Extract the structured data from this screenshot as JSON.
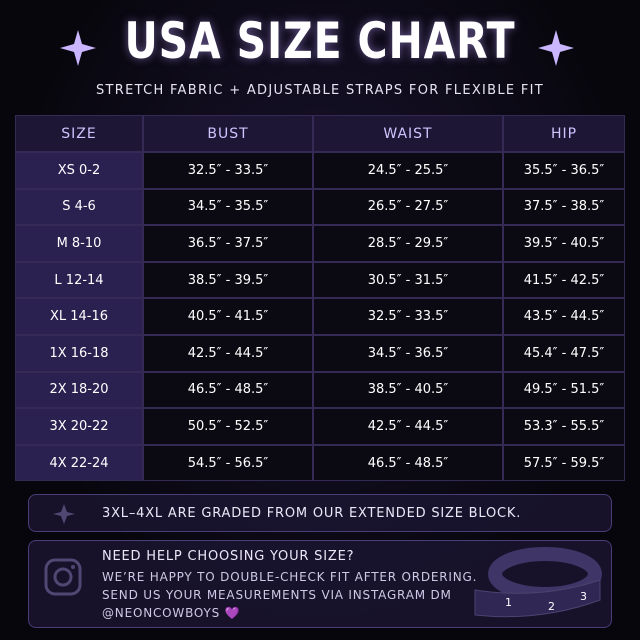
{
  "header": {
    "title": "USA SIZE CHART",
    "subtitle": "STRETCH FABRIC + ADJUSTABLE STRAPS FOR FLEXIBLE FIT"
  },
  "table": {
    "columns": [
      "SIZE",
      "BUST",
      "WAIST",
      "HIP"
    ],
    "rows": [
      [
        "XS 0-2",
        "32.5″ - 33.5″",
        "24.5″ - 25.5″",
        "35.5″ - 36.5″"
      ],
      [
        "S 4-6",
        "34.5″ - 35.5″",
        "26.5″ - 27.5″",
        "37.5″ - 38.5″"
      ],
      [
        "M 8-10",
        "36.5″ - 37.5″",
        "28.5″ - 29.5″",
        "39.5″ - 40.5″"
      ],
      [
        "L 12-14",
        "38.5″ - 39.5″",
        "30.5″ - 31.5″",
        "41.5″ - 42.5″"
      ],
      [
        "XL 14-16",
        "40.5″ - 41.5″",
        "32.5″ - 33.5″",
        "43.5″ - 44.5″"
      ],
      [
        "1X 16-18",
        "42.5″ - 44.5″",
        "34.5″ - 36.5″",
        "45.4″ - 47.5″"
      ],
      [
        "2X 18-20",
        "46.5″ - 48.5″",
        "38.5″ - 40.5″",
        "49.5″ - 51.5″"
      ],
      [
        "3X 20-22",
        "50.5″ - 52.5″",
        "42.5″ - 44.5″",
        "53.3″ - 55.5″"
      ],
      [
        "4X 22-24",
        "54.5″ - 56.5″",
        "46.5″ - 48.5″",
        "57.5″ - 59.5″"
      ]
    ]
  },
  "note": {
    "text": "3XL–4XL ARE GRADED FROM OUR EXTENDED SIZE BLOCK."
  },
  "help": {
    "heading": "NEED HELP CHOOSING YOUR SIZE?",
    "lines": [
      "WE’RE HAPPY TO DOUBLE-CHECK FIT AFTER ORDERING.",
      "SEND US YOUR MEASUREMENTS VIA INSTAGRAM DM"
    ],
    "handle": "@NEONCOWBOYS 💜"
  },
  "tape": {
    "labels": [
      "1",
      "2",
      "3"
    ]
  }
}
